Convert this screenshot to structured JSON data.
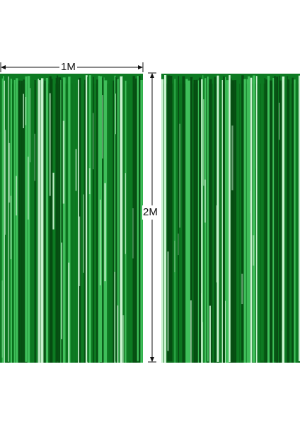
{
  "product": {
    "width_label": "1M",
    "height_label": "2M"
  },
  "colors": {
    "foil_dark": "#064d12",
    "foil_mid": "#0d7a22",
    "foil_light": "#3fbf5a",
    "foil_highlight": "#c9f2cf",
    "dimension_line": "#111111"
  }
}
